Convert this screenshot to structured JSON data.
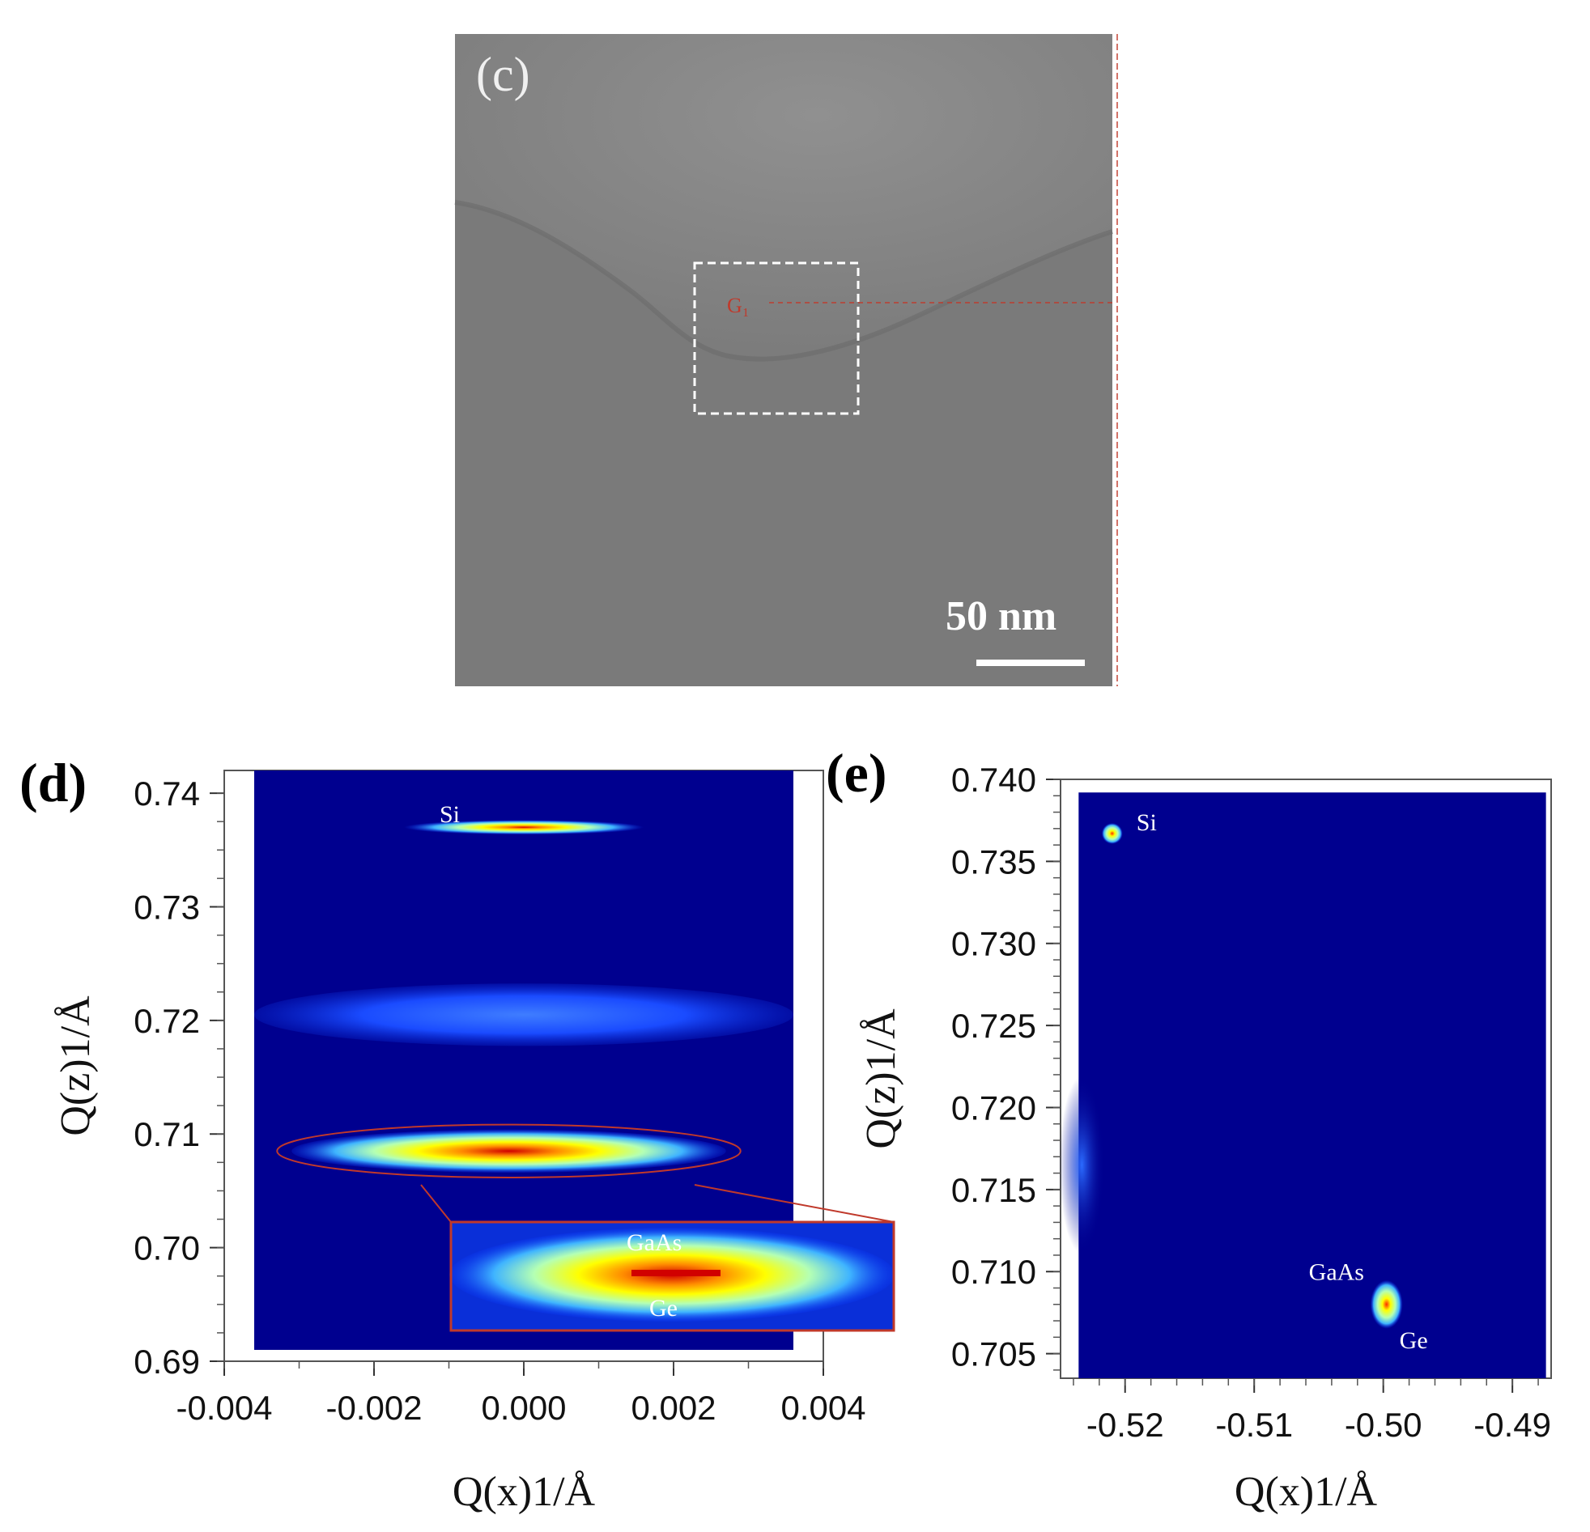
{
  "panel_c": {
    "letter": "(c)",
    "marker_label": "G₁",
    "scale_bar_text": "50 nm",
    "colors": {
      "background": "#7b7b7b",
      "upper_region": "#8c8c8c",
      "box": "#ffffff",
      "marker": "#c0392b"
    }
  },
  "chart_data": [
    {
      "panel": "(d)",
      "type": "heatmap",
      "xlabel": "Q(x)1/Å",
      "ylabel": "Q(z)1/Å",
      "xlim": [
        -0.004,
        0.004
      ],
      "ylim": [
        0.69,
        0.742
      ],
      "xticks": [
        "-0.004",
        "-0.002",
        "0.000",
        "0.002",
        "0.004"
      ],
      "yticks": [
        "0.69",
        "0.70",
        "0.71",
        "0.72",
        "0.73",
        "0.74"
      ],
      "data_extent_x": [
        -0.0036,
        0.0036
      ],
      "data_extent_y": [
        0.691,
        0.742
      ],
      "peaks": [
        {
          "label": "Si",
          "qx": 0.0,
          "qz": 0.737,
          "width_qx": 0.0032,
          "height_qz": 0.0013,
          "intensity": 0.9
        },
        {
          "label": "",
          "qx": 0.0,
          "qz": 0.7205,
          "width_qx": 0.0072,
          "height_qz": 0.0055,
          "intensity": 0.3
        },
        {
          "label": "",
          "qx": -0.0002,
          "qz": 0.7085,
          "width_qx": 0.0058,
          "height_qz": 0.0038,
          "intensity": 1.0
        }
      ],
      "inset": {
        "labels": [
          "GaAs",
          "Ge"
        ]
      },
      "colormap": [
        "#00008f",
        "#0a3cff",
        "#3fb4ff",
        "#b4ffb4",
        "#ffff00",
        "#ff8c00",
        "#d10000"
      ]
    },
    {
      "panel": "(e)",
      "type": "heatmap",
      "xlabel": "Q(x)1/Å",
      "ylabel": "Q(z)1/Å",
      "xlim": [
        -0.525,
        -0.487
      ],
      "ylim": [
        0.7035,
        0.74
      ],
      "xticks": [
        "-0.52",
        "-0.51",
        "-0.50",
        "-0.49"
      ],
      "yticks": [
        "0.705",
        "0.710",
        "0.715",
        "0.720",
        "0.725",
        "0.730",
        "0.735",
        "0.740"
      ],
      "data_extent_x": [
        -0.5236,
        -0.4874
      ],
      "data_extent_y": [
        0.7035,
        0.7392
      ],
      "peaks": [
        {
          "label": "Si",
          "qx": -0.521,
          "qz": 0.7367
        },
        {
          "label": "GaAs",
          "qx": -0.4995,
          "qz": 0.7085
        },
        {
          "label": "Ge",
          "qx": -0.5,
          "qz": 0.7075
        }
      ]
    }
  ]
}
